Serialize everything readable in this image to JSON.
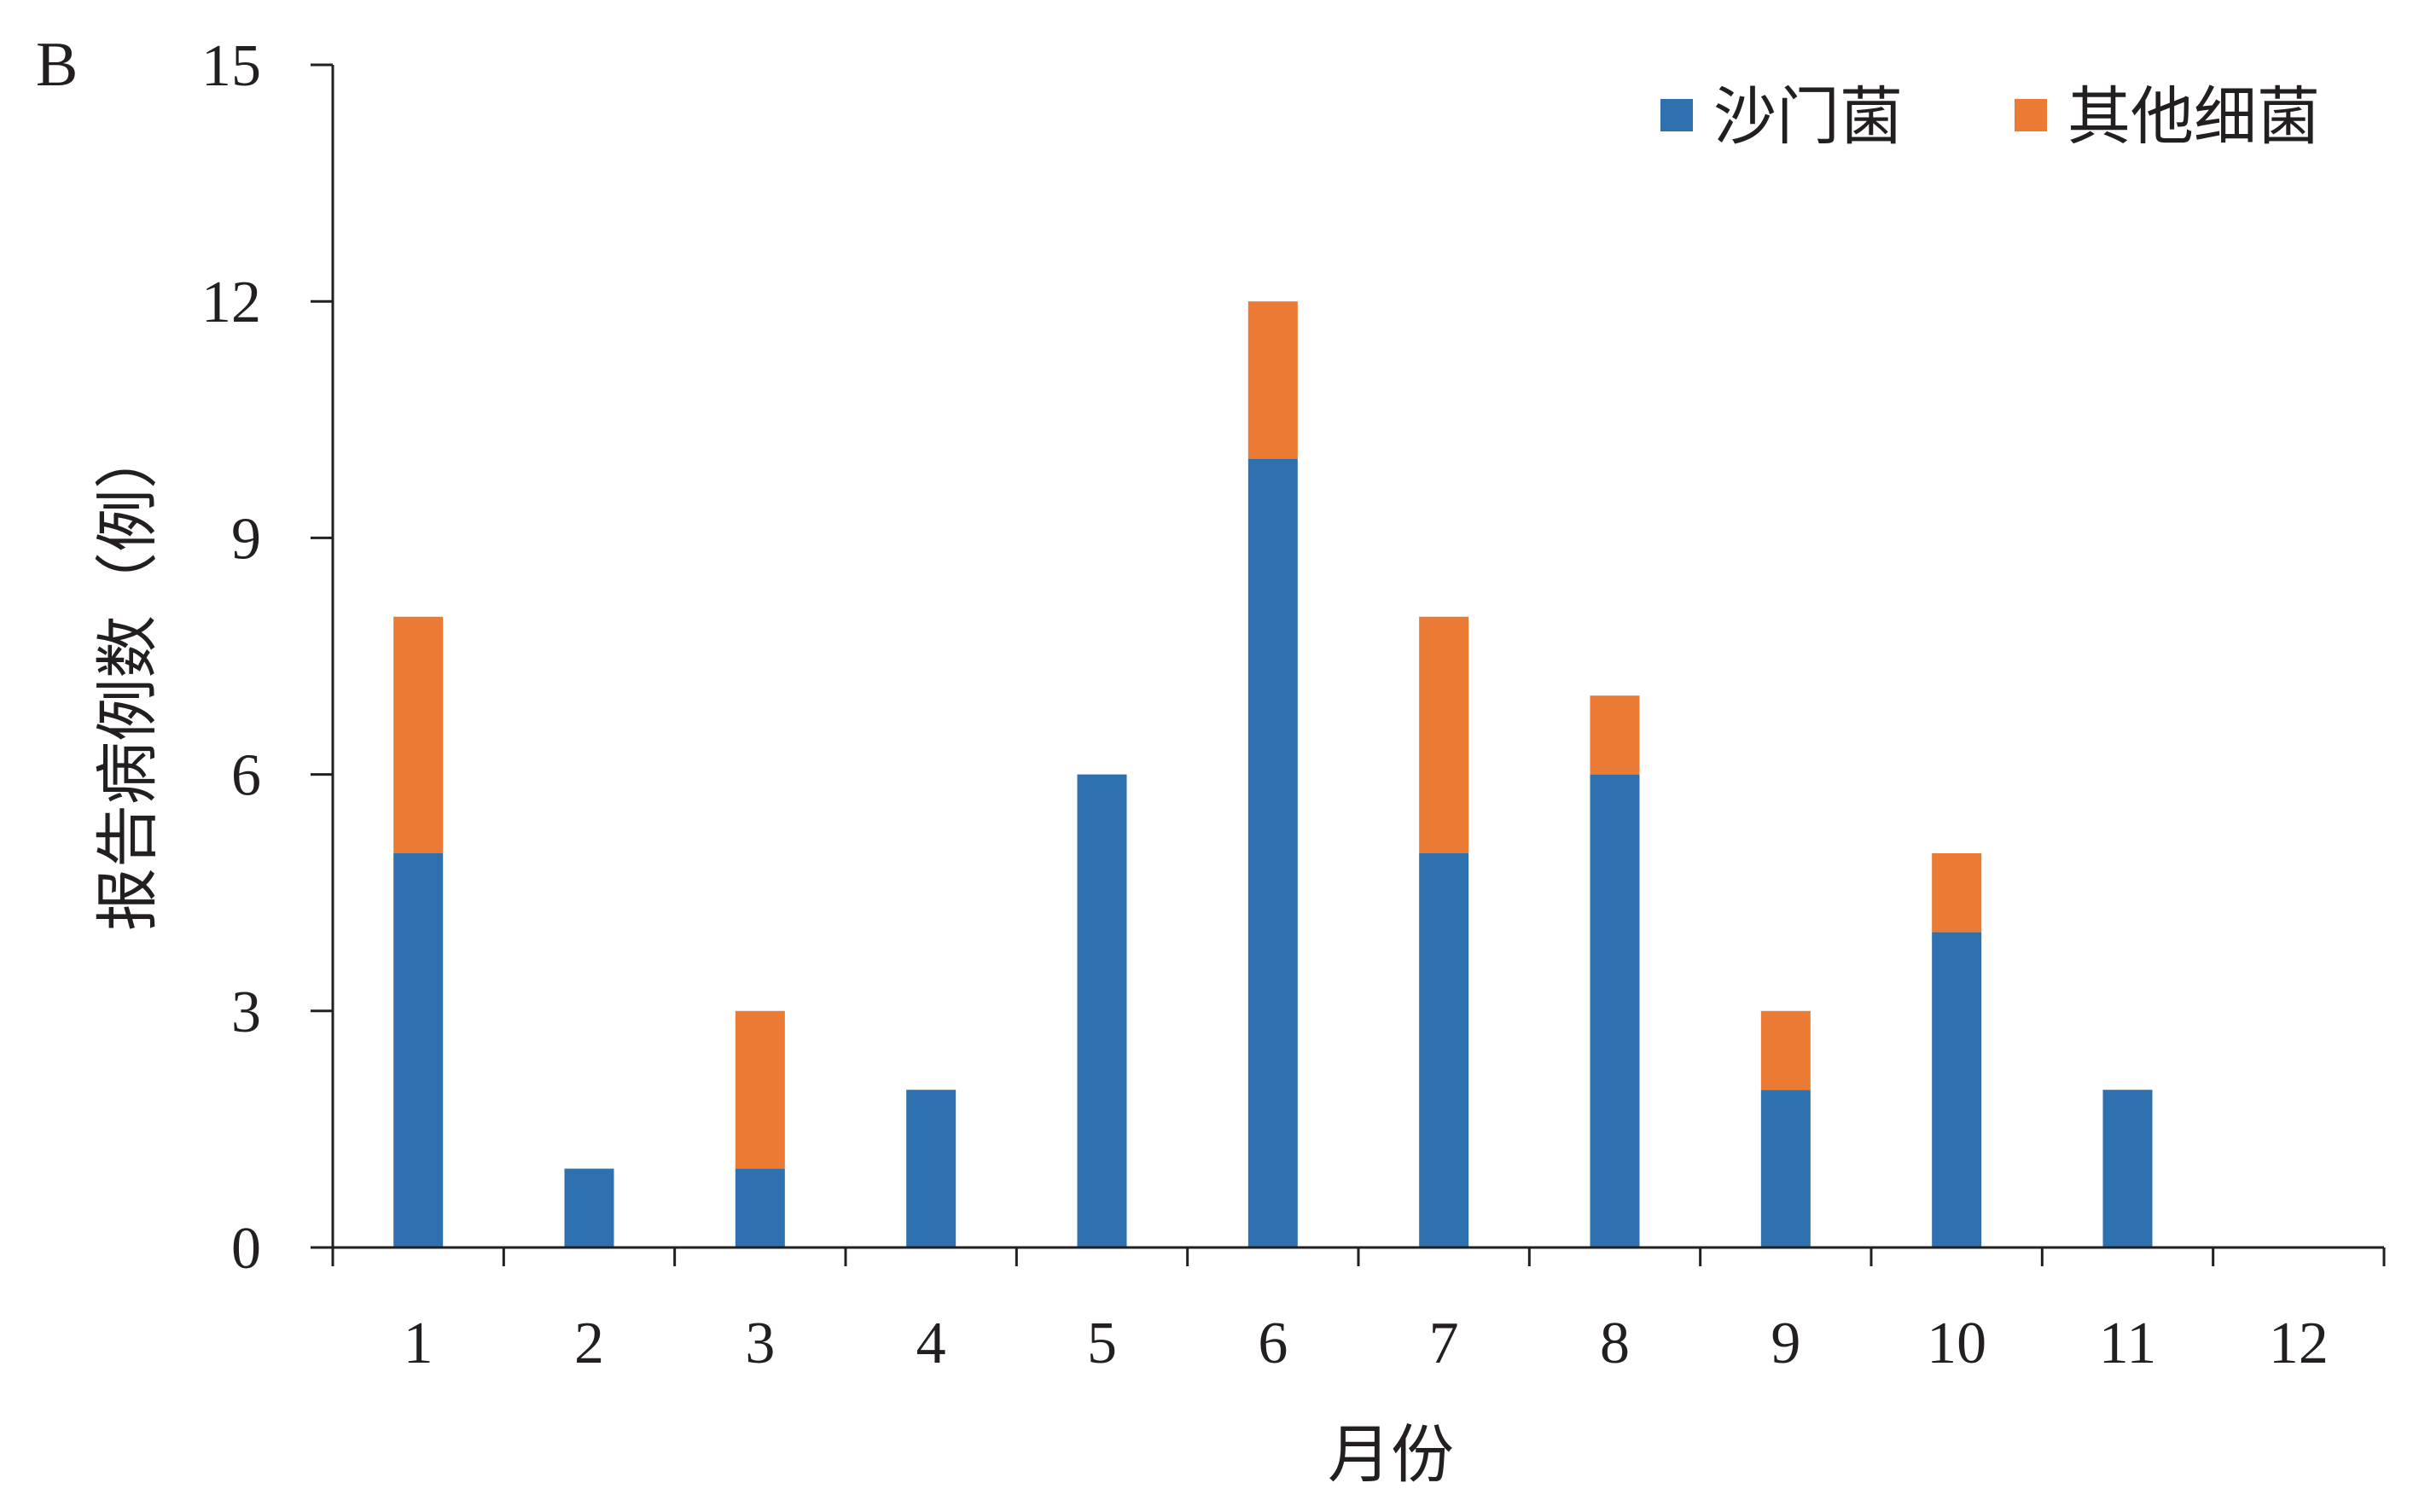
{
  "panel_label": "B",
  "chart_data": {
    "type": "bar",
    "stacked": true,
    "categories": [
      "1",
      "2",
      "3",
      "4",
      "5",
      "6",
      "7",
      "8",
      "9",
      "10",
      "11",
      "12"
    ],
    "series": [
      {
        "name": "沙门菌",
        "color": "#2e71ae",
        "values": [
          5,
          1,
          1,
          2,
          6,
          10,
          5,
          6,
          2,
          4,
          2,
          0
        ]
      },
      {
        "name": "其他细菌",
        "color": "#eb7a35",
        "values": [
          3,
          0,
          2,
          0,
          0,
          2,
          3,
          1,
          1,
          1,
          0,
          0
        ]
      }
    ],
    "xlabel": "月份",
    "ylabel": "报告病例数（例）",
    "ylim": [
      0,
      15
    ],
    "yticks": [
      0,
      3,
      6,
      9,
      12,
      15
    ],
    "grid": false,
    "legend_position": "top-right"
  }
}
